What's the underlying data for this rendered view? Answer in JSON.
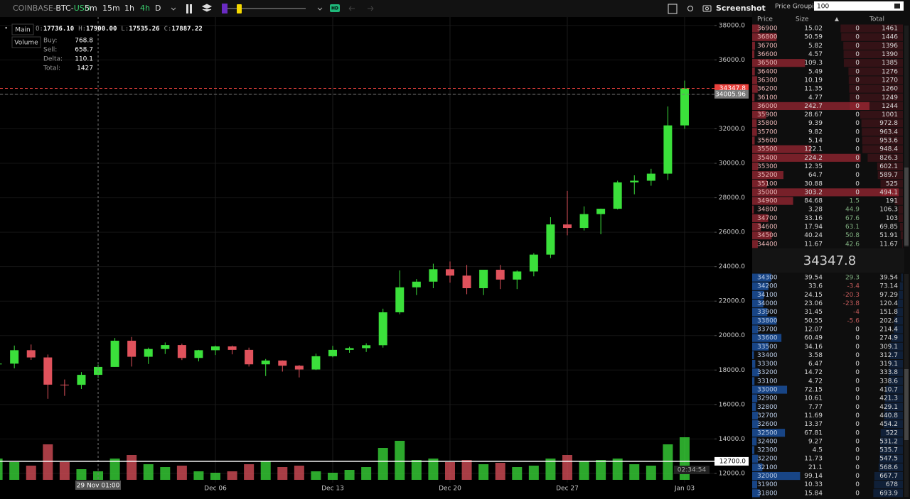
{
  "toolbar": {
    "symbol": [
      "COINBASE-",
      "BTC-",
      "USD"
    ],
    "intervals": [
      "5m",
      "15m",
      "1h",
      "4h",
      "D"
    ],
    "hd": "HD",
    "screenshot": "Screenshot"
  },
  "legend": {
    "buttons": [
      "Main",
      "Volume"
    ],
    "ohlc": [
      {
        "label": "O:",
        "value": "17736.10"
      },
      {
        "label": "H:",
        "value": "17900.00"
      },
      {
        "label": "L:",
        "value": "17535.26"
      },
      {
        "label": "C:",
        "value": "17887.22"
      }
    ],
    "stats": [
      [
        "Buy:",
        "768.8"
      ],
      [
        "Sell:",
        "658.7"
      ],
      [
        "Delta:",
        "110.1"
      ],
      [
        "Total:",
        "1427"
      ]
    ]
  },
  "chart_data": {
    "type": "candlestick",
    "categories": [
      null,
      null,
      null,
      null,
      null,
      null,
      null,
      null,
      null,
      null,
      null,
      null,
      null,
      "Dec 06",
      null,
      null,
      null,
      null,
      null,
      null,
      "Dec 13",
      null,
      null,
      null,
      null,
      null,
      null,
      "Dec 20",
      null,
      null,
      null,
      null,
      null,
      null,
      "Dec 27",
      null,
      null,
      null,
      null,
      null,
      null,
      "Jan 03"
    ],
    "open": [
      18370,
      18370,
      19150,
      18730,
      17150,
      17140,
      17720,
      18180,
      19700,
      18770,
      19220,
      19450,
      18700,
      19150,
      19370,
      19170,
      18330,
      18550,
      18250,
      18030,
      18800,
      19170,
      19270,
      19440,
      21350,
      22800,
      23130,
      23850,
      23480,
      22750,
      23820,
      23250,
      23720,
      24700,
      26450,
      26250,
      27050,
      27360,
      28890,
      28990,
      29400,
      32200
    ],
    "high": [
      18770,
      19420,
      19480,
      18900,
      17450,
      17880,
      18320,
      19860,
      19920,
      19300,
      19600,
      19530,
      19170,
      19420,
      19420,
      19300,
      18640,
      18560,
      18290,
      18950,
      19400,
      19350,
      19550,
      21560,
      23780,
      23280,
      24170,
      24300,
      24100,
      23800,
      24100,
      23780,
      24780,
      26870,
      28400,
      27500,
      27370,
      28990,
      29300,
      29680,
      33300,
      34800
    ],
    "low": [
      18000,
      18100,
      18590,
      16330,
      16500,
      16900,
      17540,
      18180,
      18200,
      18350,
      18930,
      18580,
      18500,
      18870,
      18910,
      18200,
      17650,
      17910,
      17570,
      18000,
      18740,
      19000,
      19050,
      19300,
      21240,
      22350,
      22750,
      23070,
      22400,
      22350,
      22700,
      22700,
      23440,
      24500,
      25820,
      26100,
      25880,
      27320,
      28200,
      28700,
      29030,
      32000
    ],
    "close": [
      18370,
      19150,
      18730,
      17150,
      17140,
      17720,
      18180,
      19700,
      18770,
      19220,
      19450,
      18700,
      19150,
      19370,
      19170,
      18330,
      18550,
      18250,
      18030,
      18800,
      19170,
      19270,
      19440,
      21350,
      22800,
      23130,
      23850,
      23480,
      22750,
      23820,
      23250,
      23720,
      24700,
      26450,
      26250,
      27050,
      27360,
      28890,
      28990,
      29400,
      32200,
      34347.8
    ],
    "volume": [
      30,
      25,
      20,
      50,
      25,
      15,
      12,
      30,
      35,
      22,
      18,
      20,
      12,
      10,
      12,
      22,
      26,
      18,
      20,
      12,
      10,
      14,
      18,
      45,
      55,
      28,
      30,
      25,
      28,
      22,
      24,
      18,
      20,
      30,
      35,
      26,
      28,
      30,
      22,
      20,
      50,
      60
    ],
    "up_color": "#3be03b",
    "down_color": "#e0525c",
    "ylim": [
      11460,
      38490
    ],
    "yticks": [
      {
        "value": 12000,
        "label": "12000.0"
      },
      {
        "value": 14000,
        "label": "14000.0"
      },
      {
        "value": 16000,
        "label": "16000.0"
      },
      {
        "value": 18000,
        "label": "18000.0"
      },
      {
        "value": 20000,
        "label": "20000.0"
      },
      {
        "value": 22000,
        "label": "22000.0"
      },
      {
        "value": 24000,
        "label": "24000.0"
      },
      {
        "value": 26000,
        "label": "26000.0"
      },
      {
        "value": 28000,
        "label": "28000.0"
      },
      {
        "value": 30000,
        "label": "30000.0"
      },
      {
        "value": 32000,
        "label": "32000.0"
      },
      {
        "value": 34000,
        "label": "34000.0"
      },
      {
        "value": 36000,
        "label": "36000.0"
      },
      {
        "value": 38000,
        "label": "38000.0"
      }
    ],
    "grid": true,
    "markers": [
      {
        "value": 12700,
        "label": "12700.0",
        "color": "#ffffff"
      },
      {
        "value": 34347.8,
        "color": "#e8413c"
      },
      {
        "value": 34005.96,
        "color": "#7a7a7a"
      }
    ],
    "countdown": "02:34:54",
    "crosshair_label": "29 Nov 01:00"
  },
  "order_book": {
    "grouping_label": "Price Grouping",
    "grouping_value": "100",
    "columns": [
      "Price",
      "Size",
      "Total"
    ],
    "asks": [
      [
        36900,
        15.02,
        0,
        1461
      ],
      [
        36800,
        50.59,
        0,
        1446
      ],
      [
        36700,
        5.82,
        0,
        1396
      ],
      [
        36600,
        4.57,
        0,
        1390
      ],
      [
        36500,
        109.3,
        0,
        1385
      ],
      [
        36400,
        5.49,
        0,
        1276
      ],
      [
        36300,
        10.19,
        0,
        1270
      ],
      [
        36200,
        11.35,
        0,
        1260
      ],
      [
        36100,
        4.77,
        0,
        1249
      ],
      [
        36000,
        242.7,
        0,
        1244
      ],
      [
        35900,
        28.67,
        0,
        1001
      ],
      [
        35800,
        9.39,
        0,
        972.8
      ],
      [
        35700,
        9.82,
        0,
        963.4
      ],
      [
        35600,
        5.14,
        0,
        953.6
      ],
      [
        35500,
        122.1,
        0,
        948.4
      ],
      [
        35400,
        224.2,
        0,
        826.3
      ],
      [
        35300,
        12.35,
        0,
        602.1
      ],
      [
        35200,
        64.7,
        0,
        589.7
      ],
      [
        35100,
        30.88,
        0,
        525
      ],
      [
        35000,
        303.2,
        0,
        494.1
      ],
      [
        34900,
        84.68,
        1.5,
        191
      ],
      [
        34800,
        3.28,
        44.9,
        106.3
      ],
      [
        34700,
        33.16,
        67.6,
        103
      ],
      [
        34600,
        17.94,
        63.1,
        69.85
      ],
      [
        34500,
        40.24,
        50.8,
        51.91
      ],
      [
        34400,
        11.67,
        42.6,
        11.67
      ]
    ],
    "mid_price": 34347.8,
    "bids": [
      [
        34300,
        39.54,
        29.3,
        39.54
      ],
      [
        34200,
        33.6,
        -3.4,
        73.14
      ],
      [
        34100,
        24.15,
        -20.3,
        97.29
      ],
      [
        34000,
        23.06,
        -23.8,
        120.4
      ],
      [
        33900,
        31.45,
        -4,
        151.8
      ],
      [
        33800,
        50.55,
        -5.6,
        202.4
      ],
      [
        33700,
        12.07,
        0,
        214.4
      ],
      [
        33600,
        60.49,
        0,
        274.9
      ],
      [
        33500,
        34.16,
        0,
        309.1
      ],
      [
        33400,
        3.58,
        0,
        312.7
      ],
      [
        33300,
        6.47,
        0,
        319.1
      ],
      [
        33200,
        14.72,
        0,
        333.8
      ],
      [
        33100,
        4.72,
        0,
        338.6
      ],
      [
        33000,
        72.15,
        0,
        410.7
      ],
      [
        32900,
        10.61,
        0,
        421.3
      ],
      [
        32800,
        7.77,
        0,
        429.1
      ],
      [
        32700,
        11.69,
        0,
        440.8
      ],
      [
        32600,
        13.37,
        0,
        454.2
      ],
      [
        32500,
        67.81,
        0,
        522
      ],
      [
        32400,
        9.27,
        0,
        531.2
      ],
      [
        32300,
        4.5,
        0,
        535.7
      ],
      [
        32200,
        11.73,
        0,
        547.5
      ],
      [
        32100,
        21.1,
        0,
        568.6
      ],
      [
        32000,
        99.14,
        0,
        667.7
      ],
      [
        31900,
        10.33,
        0,
        678
      ],
      [
        31800,
        15.84,
        0,
        693.9
      ]
    ]
  }
}
